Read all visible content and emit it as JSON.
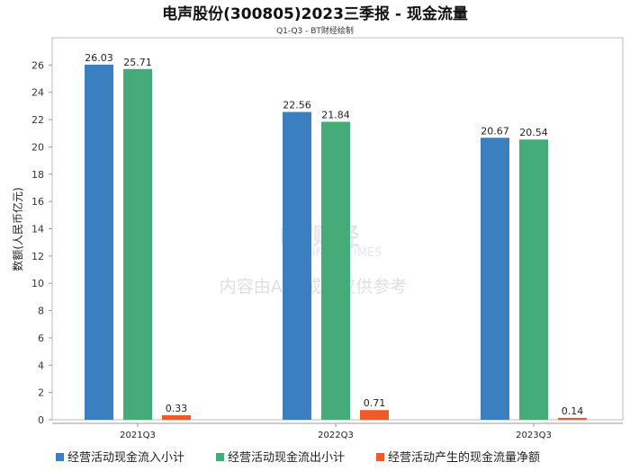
{
  "chart_data": {
    "type": "bar",
    "title": "电声股份(300805)2023三季报 - 现金流量",
    "subtitle": "Q1-Q3 - BT财经绘制",
    "xlabel": "",
    "ylabel": "数额(人民币亿元)",
    "ylim": [
      0,
      28
    ],
    "yticks": [
      0,
      2,
      4,
      6,
      8,
      10,
      12,
      14,
      16,
      18,
      20,
      22,
      24,
      26
    ],
    "categories": [
      "2021Q3",
      "2022Q3",
      "2023Q3"
    ],
    "series": [
      {
        "name": "经营活动现金流入小计",
        "color": "#3a7fc0",
        "values": [
          26.03,
          22.56,
          20.67
        ]
      },
      {
        "name": "经营活动现金流出小计",
        "color": "#45ab78",
        "values": [
          25.71,
          21.84,
          20.54
        ]
      },
      {
        "name": "经营活动产生的现金流量净额",
        "color": "#ee5a2a",
        "values": [
          0.33,
          0.71,
          0.14
        ]
      }
    ],
    "legend_position": "bottom",
    "grid": false,
    "watermark": [
      "BT财经",
      "BUSINESSTIMES",
      "内容由AI生成，仅供参考"
    ]
  }
}
